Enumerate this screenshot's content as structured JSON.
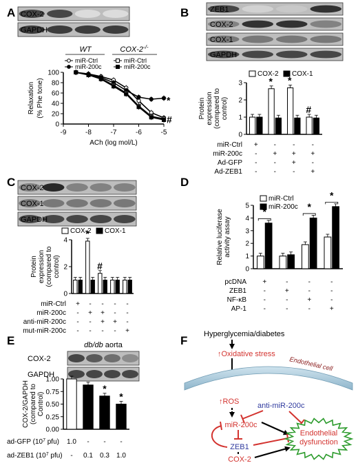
{
  "panels": {
    "A": {
      "letter": "A",
      "blot_labels": [
        "COX-2",
        "GAPDH"
      ],
      "group_left": "WT",
      "group_right": "COX-2",
      "group_right_sup": "-/-",
      "legend_left": [
        "miR-Ctrl",
        "miR-200c"
      ],
      "legend_right": [
        "miR-Ctrl",
        "miR-200c"
      ],
      "marks": [
        "*",
        "#"
      ],
      "chart_data": {
        "type": "line",
        "xlabel": "ACh (log mol/L)",
        "ylabel": [
          "Relaxation",
          "(% Phe tone)"
        ],
        "xlim": [
          -9,
          -5
        ],
        "ylim": [
          0,
          100
        ],
        "xticks": [
          -9,
          -8,
          -7,
          -6,
          -5
        ],
        "yticks": [
          0,
          20,
          40,
          60,
          80,
          100
        ],
        "x": [
          -8.5,
          -8,
          -7.5,
          -7,
          -6.5,
          -6,
          -5.5,
          -5
        ],
        "series": [
          {
            "name": "WT miR-Ctrl",
            "values": [
              100,
              97,
              92,
              85,
              70,
              45,
              22,
              12
            ]
          },
          {
            "name": "WT miR-200c",
            "values": [
              100,
              96,
              90,
              80,
              65,
              52,
              48,
              50
            ]
          },
          {
            "name": "COX-2-/- miR-Ctrl",
            "values": [
              100,
              95,
              88,
              75,
              60,
              35,
              15,
              10
            ]
          },
          {
            "name": "COX-2-/- miR-200c",
            "values": [
              100,
              95,
              87,
              73,
              58,
              33,
              13,
              8
            ]
          }
        ]
      }
    },
    "B": {
      "letter": "B",
      "blot_labels": [
        "ZEB1",
        "COX-2",
        "COX-1",
        "GAPDH"
      ],
      "marks": [
        "*",
        "*",
        "#"
      ],
      "conditions": [
        {
          "label": "miR-Ctrl",
          "signs": [
            "+",
            "-",
            "-",
            "-"
          ]
        },
        {
          "label": "miR-200c",
          "signs": [
            "-",
            "+",
            "+",
            "+"
          ]
        },
        {
          "label": "Ad-GFP",
          "signs": [
            "-",
            "-",
            "+",
            "-"
          ]
        },
        {
          "label": "Ad-ZEB1",
          "signs": [
            "-",
            "-",
            "-",
            "+"
          ]
        }
      ],
      "chart_data": {
        "type": "bar",
        "ylabel": [
          "Protein",
          "expression",
          "(compared to",
          "control)"
        ],
        "ylim": [
          0,
          3
        ],
        "yticks": [
          0,
          1,
          2,
          3
        ],
        "series": [
          {
            "name": "COX-2",
            "values": [
              1.0,
              2.65,
              2.7,
              1.0
            ]
          },
          {
            "name": "COX-1",
            "values": [
              1.0,
              0.95,
              0.95,
              0.95
            ]
          }
        ]
      }
    },
    "C": {
      "letter": "C",
      "blot_labels": [
        "COX-2",
        "COX-1",
        "GAPDH"
      ],
      "marks": [
        "*",
        "#"
      ],
      "conditions": [
        {
          "label": "miR-Ctrl",
          "signs": [
            "+",
            "-",
            "-",
            "-",
            "-"
          ]
        },
        {
          "label": "miR-200c",
          "signs": [
            "-",
            "+",
            "+",
            "-",
            "-"
          ]
        },
        {
          "label": "anti-miR-200c",
          "signs": [
            "-",
            "-",
            "+",
            "+",
            "-"
          ]
        },
        {
          "label": "mut-miR-200c",
          "signs": [
            "-",
            "-",
            "-",
            "-",
            "+"
          ]
        }
      ],
      "chart_data": {
        "type": "bar",
        "ylabel": [
          "Protein",
          "expression",
          "(compared to",
          "control)"
        ],
        "ylim": [
          0,
          4
        ],
        "yticks": [
          0,
          2,
          4
        ],
        "series": [
          {
            "name": "COX-2",
            "values": [
              1.0,
              3.9,
              1.5,
              1.0,
              1.0
            ]
          },
          {
            "name": "COX-1",
            "values": [
              1.0,
              1.0,
              1.0,
              1.0,
              1.0
            ]
          }
        ]
      }
    },
    "D": {
      "letter": "D",
      "marks": [
        "*",
        "*",
        "*"
      ],
      "conditions": [
        {
          "label": "pcDNA",
          "signs": [
            "+",
            "-",
            "-",
            "-"
          ]
        },
        {
          "label": "ZEB1",
          "signs": [
            "-",
            "+",
            "-",
            "-"
          ]
        },
        {
          "label": "NF-κB",
          "signs": [
            "-",
            "-",
            "+",
            "-"
          ]
        },
        {
          "label": "AP-1",
          "signs": [
            "-",
            "-",
            "-",
            "+"
          ]
        }
      ],
      "chart_data": {
        "type": "bar",
        "ylabel": [
          "Relative luciferase",
          "activity assay"
        ],
        "ylim": [
          0,
          5
        ],
        "yticks": [
          0,
          1,
          2,
          3,
          4,
          5
        ],
        "series": [
          {
            "name": "miR-Ctrl",
            "values": [
              1.0,
              1.0,
              1.9,
              2.5
            ]
          },
          {
            "name": "miR-200c",
            "values": [
              3.6,
              1.1,
              4.0,
              4.9
            ]
          }
        ]
      }
    },
    "E": {
      "letter": "E",
      "blot_title_italic": "db/db",
      "blot_title_rest": " aorta",
      "blot_labels": [
        "COX-2",
        "GAPDH"
      ],
      "marks": [
        "*",
        "*"
      ],
      "conditions": [
        {
          "label": "ad-GFP (10",
          "sup": "7",
          "tail": " pfu)",
          "values": [
            "1.0",
            "-",
            "-",
            "-"
          ]
        },
        {
          "label": "ad-ZEB1 (10",
          "sup": "7",
          "tail": " pfu)",
          "values": [
            "-",
            "0.1",
            "0.3",
            "1.0"
          ]
        }
      ],
      "chart_data": {
        "type": "bar",
        "ylabel": [
          "COX-2/GAPDH",
          "(compared to",
          "Control)"
        ],
        "ylim": [
          0,
          1.0
        ],
        "yticks": [
          0,
          0.25,
          0.5,
          0.75,
          1.0
        ],
        "ytick_labels": [
          "0.00",
          "0.25",
          "0.50",
          "0.75",
          "1.00"
        ],
        "values": [
          1.0,
          0.88,
          0.66,
          0.5
        ]
      }
    },
    "F": {
      "letter": "F",
      "top": "Hyperglycemia/diabetes",
      "oxidative": "Oxidative stress",
      "membrane": "Endothelial cell",
      "ros": "ROS",
      "mir": "miR-200c",
      "anti": "anti-miR-200c",
      "zeb": "ZEB1",
      "cox": "COX-2",
      "dysfunction": [
        "Endothelial",
        "dysfunction"
      ],
      "up_arrow": "↑",
      "colors": {
        "red": "#d3332f",
        "blue": "#2f3a9e",
        "green": "#2e9c2e"
      }
    }
  }
}
